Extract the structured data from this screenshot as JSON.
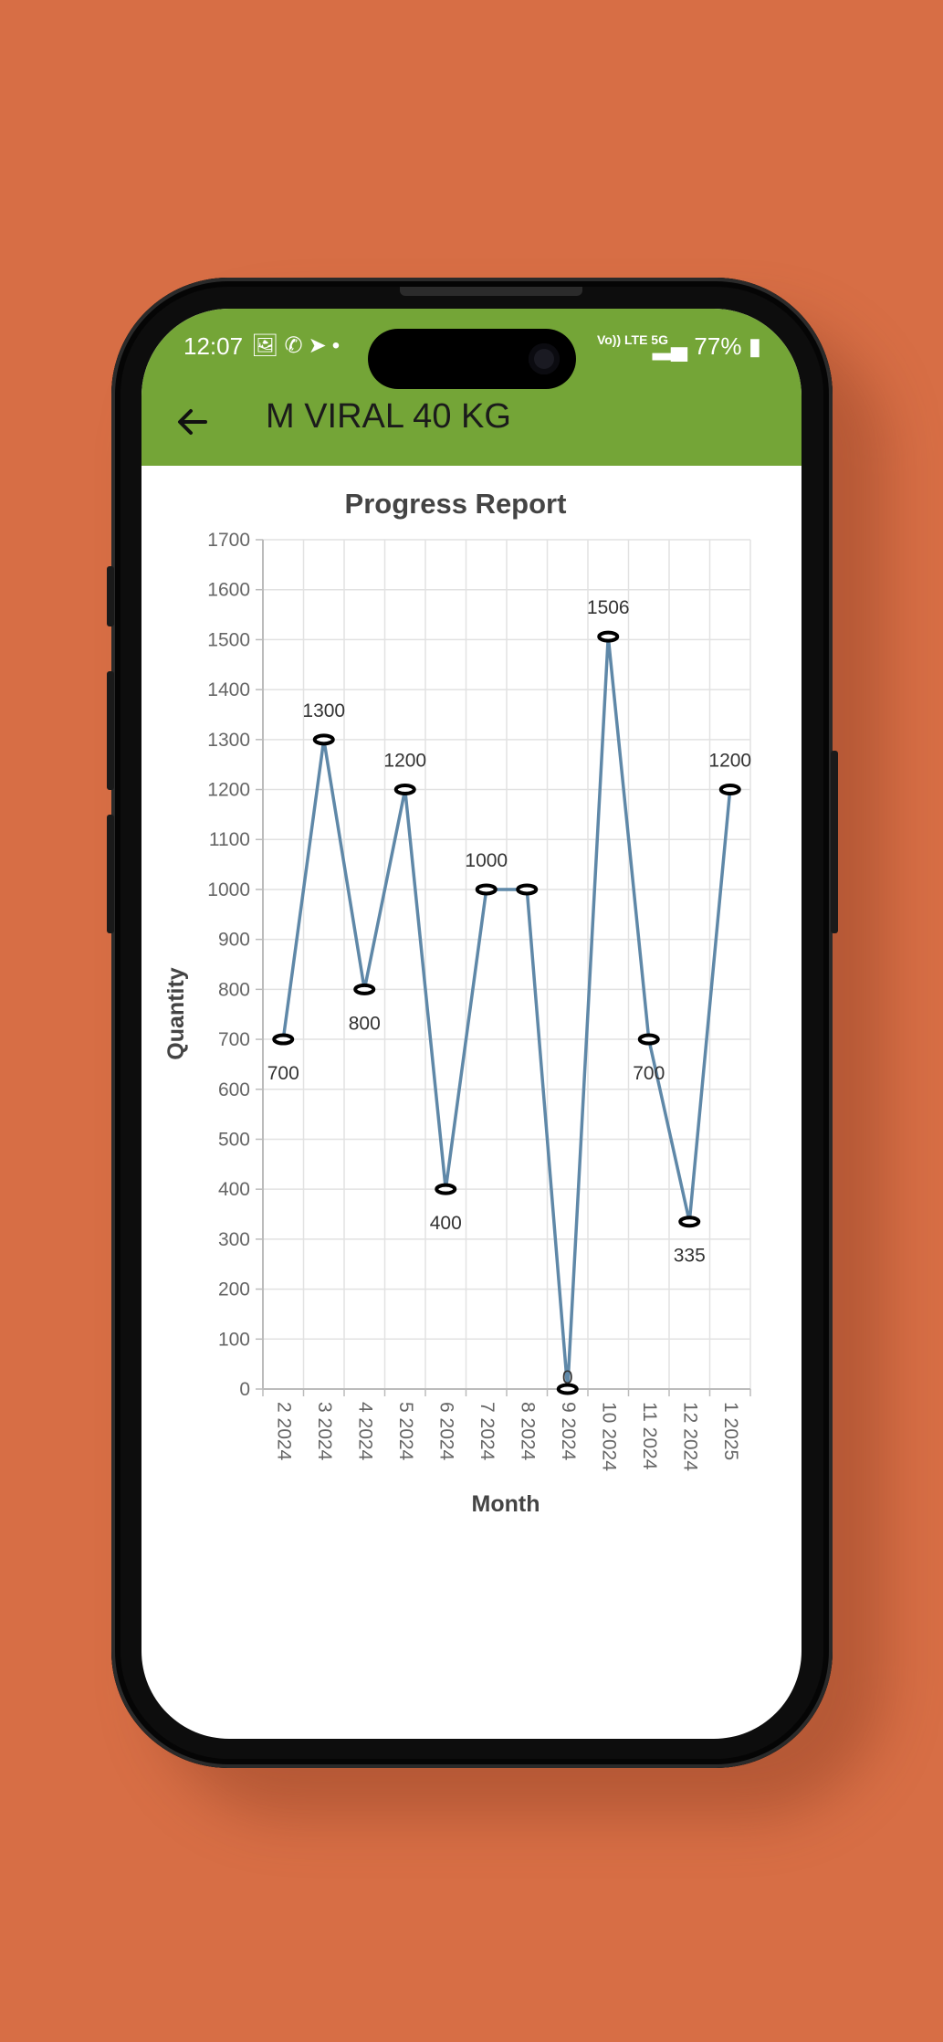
{
  "status_bar": {
    "time": "12:07",
    "notification_icons": [
      "gallery-icon",
      "whatsapp-icon",
      "telegram-icon",
      "dot-icon"
    ],
    "network_label": "Vo)) LTE 5G",
    "battery": "77%"
  },
  "app_bar": {
    "title": "M VIRAL 40 KG",
    "back_icon": "arrow-left-icon",
    "color": "#74a537"
  },
  "chart_data": {
    "type": "line",
    "title": "Progress Report",
    "xlabel": "Month",
    "ylabel": "Quantity",
    "categories": [
      "2 2024",
      "3 2024",
      "4 2024",
      "5 2024",
      "6 2024",
      "7 2024",
      "8 2024",
      "9 2024",
      "10 2024",
      "11 2024",
      "12 2024",
      "1 2025"
    ],
    "series": [
      {
        "values": [
          700,
          1300,
          800,
          1200,
          400,
          1000,
          1000,
          0,
          1506,
          700,
          335,
          1200
        ]
      }
    ],
    "data_labels": [
      "700",
      "1300",
      "800",
      "1200",
      "400",
      "1000",
      "",
      "0",
      "1506",
      "700",
      "335",
      "1200"
    ],
    "label_positions": [
      "below",
      "above",
      "below",
      "above",
      "below",
      "above",
      "none",
      "center",
      "above",
      "below",
      "below",
      "above"
    ],
    "yticks": [
      "0",
      "100",
      "200",
      "300",
      "400",
      "500",
      "600",
      "700",
      "800",
      "900",
      "1000",
      "1100",
      "1200",
      "1300",
      "1400",
      "1500",
      "1600",
      "1700"
    ],
    "ylim": [
      0,
      1700
    ],
    "grid": true,
    "line_color": "#5f88a8"
  }
}
